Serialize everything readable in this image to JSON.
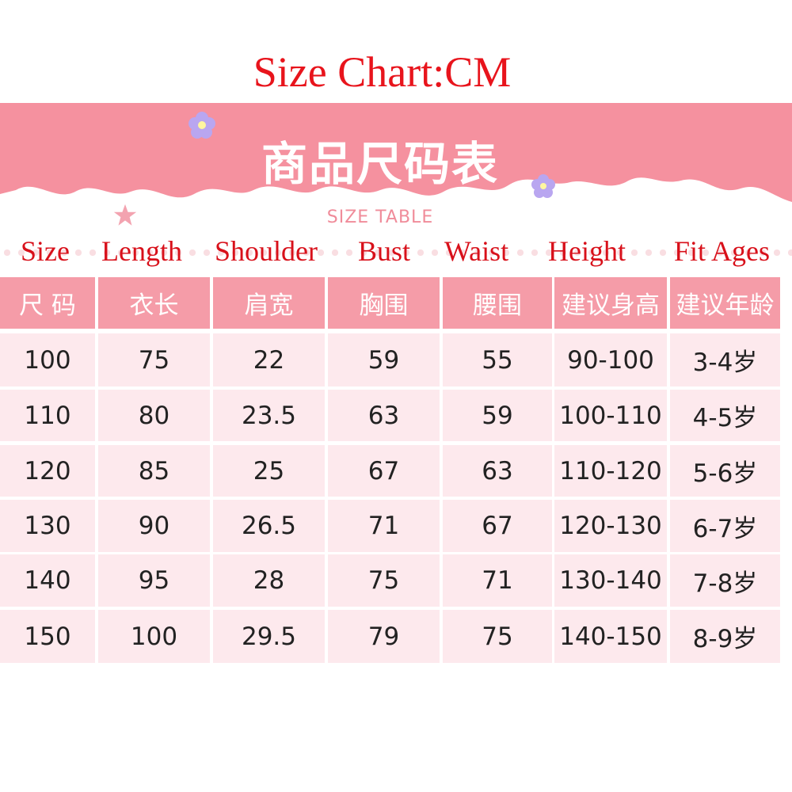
{
  "title": "Size Chart:CM",
  "banner": {
    "title": "商品尺码表",
    "subtitle": "SIZE TABLE"
  },
  "english_headers": [
    "Size",
    "Length",
    "Shoulder",
    "Bust",
    "Waist",
    "Height",
    "Fit Ages"
  ],
  "table": {
    "headers": [
      "尺 码",
      "衣长",
      "肩宽",
      "胸围",
      "腰围",
      "建议身高",
      "建议年龄"
    ],
    "rows": [
      [
        "100",
        "75",
        "22",
        "59",
        "55",
        "90-100",
        "3-4岁"
      ],
      [
        "110",
        "80",
        "23.5",
        "63",
        "59",
        "100-110",
        "4-5岁"
      ],
      [
        "120",
        "85",
        "25",
        "67",
        "63",
        "110-120",
        "5-6岁"
      ],
      [
        "130",
        "90",
        "26.5",
        "71",
        "67",
        "120-130",
        "6-7岁"
      ],
      [
        "140",
        "95",
        "28",
        "75",
        "71",
        "130-140",
        "7-8岁"
      ],
      [
        "150",
        "100",
        "29.5",
        "79",
        "75",
        "140-150",
        "8-9岁"
      ]
    ]
  },
  "colors": {
    "title": "#e8141c",
    "banner": "#f5919f",
    "header_cell": "#f59ca8",
    "data_cell": "#fde9ed"
  }
}
